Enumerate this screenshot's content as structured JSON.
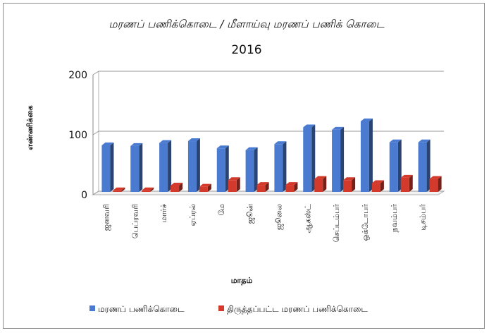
{
  "chart_data": {
    "type": "bar",
    "title": "மரணப் பணிக்கொடை / மீளாய்வு மரணப் பணிக் கொடை",
    "subtitle": "2016",
    "xlabel": "மாதம்",
    "ylabel": "எண்ணிக்கை",
    "ylim": [
      0,
      200
    ],
    "yticks": [
      "0",
      "100",
      "200"
    ],
    "grid": true,
    "legend_position": "bottom",
    "categories": [
      "ஜனவரி",
      "பெப்ரவரி",
      "மார்ச்",
      "ஏப்ரல்",
      "மே",
      "ஜூன்",
      "ஜூலை",
      "ஆகஸ்ட்",
      "செப்டம்பர்",
      "ஒக்டோபர்",
      "நவம்பர்",
      "டிசம்பர்"
    ],
    "series": [
      {
        "name": "மரணப் பணிக்கொடை",
        "color": "#4a7bd0",
        "values": [
          80,
          79,
          84,
          87,
          75,
          72,
          82,
          110,
          106,
          120,
          85,
          85
        ]
      },
      {
        "name": "திருத்தப்பட்ட மரணப் பணிக்கொடை",
        "color": "#d43a2c",
        "values": [
          5,
          5,
          13,
          11,
          22,
          14,
          14,
          24,
          22,
          17,
          26,
          24
        ]
      }
    ]
  }
}
